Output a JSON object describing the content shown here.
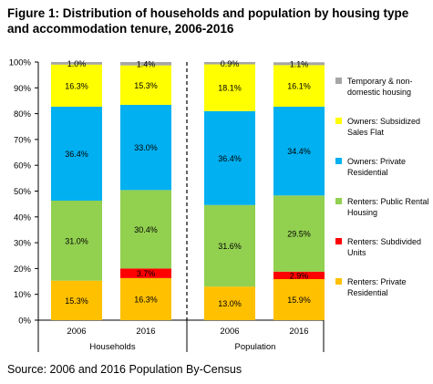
{
  "title": "Figure 1: Distribution of households and population by housing type and accommodation tenure, 2006-2016",
  "source": "Source: 2006 and 2016 Population By-Census",
  "chart_data": {
    "type": "bar",
    "stacked": true,
    "y_ticks": [
      "0%",
      "10%",
      "20%",
      "30%",
      "40%",
      "50%",
      "60%",
      "70%",
      "80%",
      "90%",
      "100%"
    ],
    "ylim": [
      0,
      100
    ],
    "groups": [
      {
        "label": "Households",
        "categories": [
          "2006",
          "2016"
        ]
      },
      {
        "label": "Population",
        "categories": [
          "2006",
          "2016"
        ]
      }
    ],
    "bars": [
      {
        "group": "Households",
        "category": "2006"
      },
      {
        "group": "Households",
        "category": "2016"
      },
      {
        "group": "Population",
        "category": "2006"
      },
      {
        "group": "Population",
        "category": "2016"
      }
    ],
    "series": [
      {
        "name": "Renters: Private Residential",
        "color": "#FFC000",
        "values": [
          15.3,
          16.3,
          13.0,
          15.9
        ],
        "labels": [
          "15.3%",
          "16.3%",
          "13.0%",
          "15.9%"
        ]
      },
      {
        "name": "Renters: Subdivided Units",
        "color": "#FF0000",
        "values": [
          0,
          3.7,
          0,
          2.9
        ],
        "labels": [
          "",
          "3.7%",
          "",
          "2.9%"
        ]
      },
      {
        "name": "Renters: Public Rental Housing",
        "color": "#92D050",
        "values": [
          31.0,
          30.4,
          31.6,
          29.5
        ],
        "labels": [
          "31.0%",
          "30.4%",
          "31.6%",
          "29.5%"
        ]
      },
      {
        "name": "Owners:  Private Residential",
        "color": "#00B0F0",
        "values": [
          36.4,
          33.0,
          36.4,
          34.4
        ],
        "labels": [
          "36.4%",
          "33.0%",
          "36.4%",
          "34.4%"
        ]
      },
      {
        "name": "Owners: Subsidized Sales Flat",
        "color": "#FFFF00",
        "values": [
          16.3,
          15.3,
          18.1,
          16.1
        ],
        "labels": [
          "16.3%",
          "15.3%",
          "18.1%",
          "16.1%"
        ]
      },
      {
        "name": "Temporary & non-domestic housing",
        "color": "#A6A6A6",
        "values": [
          1.0,
          1.4,
          0.9,
          1.1
        ],
        "labels": [
          "1.0%",
          "1.4%",
          "0.9%",
          "1.1%"
        ]
      }
    ],
    "legend": [
      {
        "lines": [
          "Temporary & non-",
          "domestic housing"
        ],
        "color": "#A6A6A6"
      },
      {
        "lines": [
          "Owners: Subsidized",
          "Sales Flat"
        ],
        "color": "#FFFF00"
      },
      {
        "lines": [
          "Owners:  Private",
          "Residential"
        ],
        "color": "#00B0F0"
      },
      {
        "lines": [
          "Renters: Public Rental",
          "Housing"
        ],
        "color": "#92D050"
      },
      {
        "lines": [
          "Renters: Subdivided",
          "Units"
        ],
        "color": "#FF0000"
      },
      {
        "lines": [
          "Renters: Private",
          "Residential"
        ],
        "color": "#FFC000"
      }
    ],
    "legend_position": "right",
    "grid": false,
    "group_separator": "dashed"
  }
}
